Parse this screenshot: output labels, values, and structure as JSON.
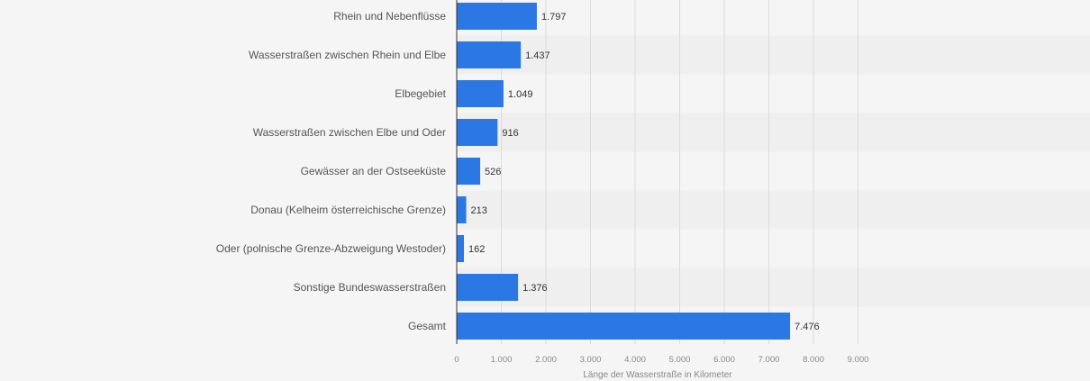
{
  "chart_data": {
    "type": "bar",
    "orientation": "horizontal",
    "categories": [
      "Rhein und Nebenflüsse",
      "Wasserstraßen zwischen Rhein und Elbe",
      "Elbegebiet",
      "Wasserstraßen zwischen Elbe und Oder",
      "Gewässer an der Ostseeküste",
      "Donau (Kelheim österreichische Grenze)",
      "Oder (polnische Grenze-Abzweigung Westoder)",
      "Sonstige Bundeswasserstraßen",
      "Gesamt"
    ],
    "values": [
      1797,
      1437,
      1049,
      916,
      526,
      213,
      162,
      1376,
      7476
    ],
    "value_labels": [
      "1.797",
      "1.437",
      "1.049",
      "916",
      "526",
      "213",
      "162",
      "1.376",
      "7.476"
    ],
    "xlabel": "Länge der Wasserstraße in Kilometer",
    "ylabel": "",
    "xlim": [
      0,
      9000
    ],
    "xticks": [
      0,
      1000,
      2000,
      3000,
      4000,
      5000,
      6000,
      7000,
      8000,
      9000
    ],
    "xtick_labels": [
      "0",
      "1.000",
      "2.000",
      "3.000",
      "4.000",
      "5.000",
      "6.000",
      "7.000",
      "8.000",
      "9.000"
    ],
    "grid": true,
    "bar_color": "#2b78e4",
    "stripe_color": "#efefef"
  }
}
